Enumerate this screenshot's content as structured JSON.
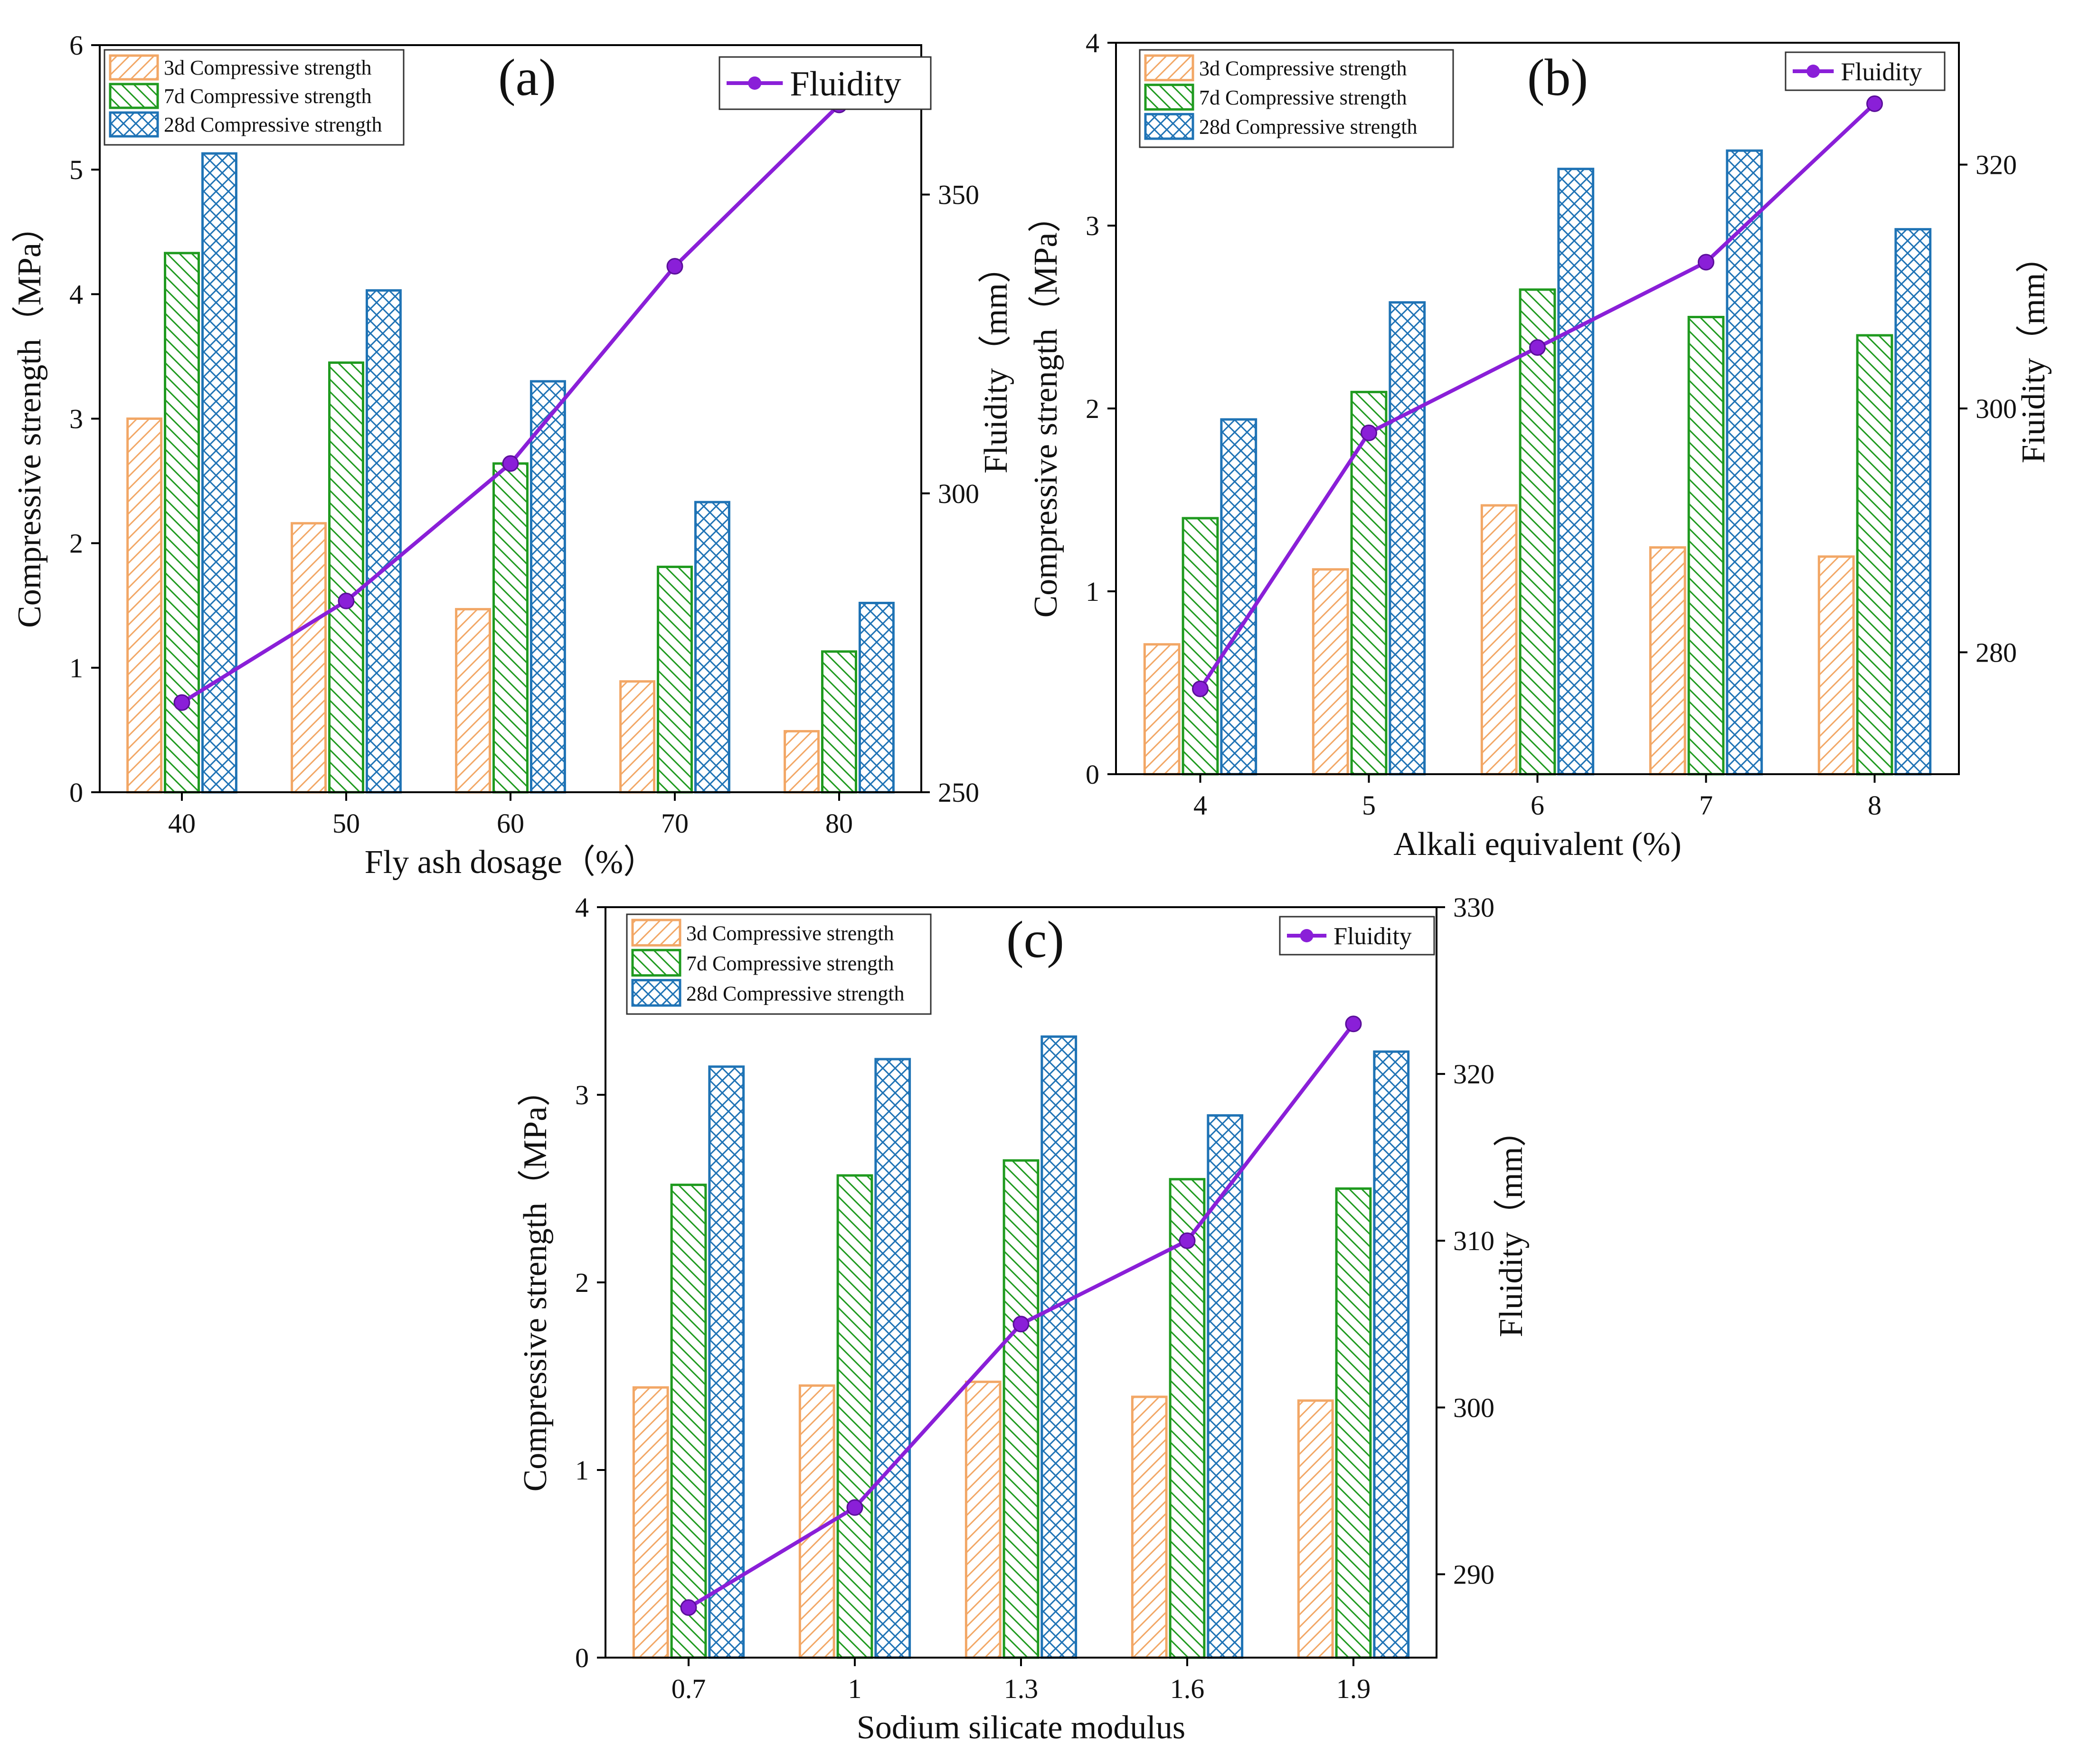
{
  "colors": {
    "d3": "#f2a766",
    "d7": "#1f9a1f",
    "d28": "#1f73b5",
    "fluidity": "#8a1fd8"
  },
  "chart_data": [
    {
      "type": "bar",
      "panel_label": "(a)",
      "xlabel": "Fly ash dosage（%）",
      "ylabel": "Compressive strength（MPa）",
      "y2label": "Fluidity（mm）",
      "categories": [
        "40",
        "50",
        "60",
        "70",
        "80"
      ],
      "ylim": [
        0,
        6
      ],
      "yticks": [
        "0",
        "1",
        "2",
        "3",
        "4",
        "5",
        "6"
      ],
      "y2lim": [
        250,
        375
      ],
      "y2ticks": [
        "250",
        "300",
        "350"
      ],
      "series": [
        {
          "name": "3d Compressive strength",
          "values": [
            3.0,
            2.16,
            1.47,
            0.89,
            0.49
          ]
        },
        {
          "name": "7d Compressive strength",
          "values": [
            4.33,
            3.45,
            2.64,
            1.81,
            1.13
          ]
        },
        {
          "name": "28d Compressive strength",
          "values": [
            5.13,
            4.03,
            3.3,
            2.33,
            1.52
          ]
        }
      ],
      "line": {
        "name": "Fluidity",
        "values": [
          265,
          282,
          305,
          338,
          365
        ]
      },
      "legend_lines": "top-right",
      "legend_bars": "top-left"
    },
    {
      "type": "bar",
      "panel_label": "(b)",
      "xlabel": "Alkali equivalent (%)",
      "ylabel": "Compressive strength（MPa）",
      "y2label": "Fiuidity（mm）",
      "categories": [
        "4",
        "5",
        "6",
        "7",
        "8"
      ],
      "ylim": [
        0,
        4
      ],
      "yticks": [
        "0",
        "1",
        "2",
        "3",
        "4"
      ],
      "y2lim": [
        270,
        330
      ],
      "y2ticks": [
        "280",
        "300",
        "320"
      ],
      "series": [
        {
          "name": "3d Compressive strength",
          "values": [
            0.71,
            1.12,
            1.47,
            1.24,
            1.19
          ]
        },
        {
          "name": "7d Compressive strength",
          "values": [
            1.4,
            2.09,
            2.65,
            2.5,
            2.4
          ]
        },
        {
          "name": "28d Compressive strength",
          "values": [
            1.94,
            2.58,
            3.31,
            3.41,
            2.98
          ]
        }
      ],
      "line": {
        "name": "Fluidity",
        "values": [
          277,
          298,
          305,
          312,
          325
        ]
      },
      "legend_lines": "top-right",
      "legend_bars": "top-left"
    },
    {
      "type": "bar",
      "panel_label": "(c)",
      "xlabel": "Sodium silicate modulus",
      "ylabel": "Compressive strength（MPa）",
      "y2label": "Fluidity（mm）",
      "categories": [
        "0.7",
        "1",
        "1.3",
        "1.6",
        "1.9"
      ],
      "ylim": [
        0,
        4
      ],
      "yticks": [
        "0",
        "1",
        "2",
        "3",
        "4"
      ],
      "y2lim": [
        285,
        330
      ],
      "y2ticks": [
        "290",
        "300",
        "310",
        "320",
        "330"
      ],
      "series": [
        {
          "name": "3d Compressive strength",
          "values": [
            1.44,
            1.45,
            1.47,
            1.39,
            1.37
          ]
        },
        {
          "name": "7d Compressive strength",
          "values": [
            2.52,
            2.57,
            2.65,
            2.55,
            2.5
          ]
        },
        {
          "name": "28d Compressive strength",
          "values": [
            3.15,
            3.19,
            3.31,
            2.89,
            3.23
          ]
        }
      ],
      "line": {
        "name": "Fluidity",
        "values": [
          288,
          294,
          305,
          310,
          323
        ]
      },
      "legend_lines": "top-right",
      "legend_bars": "top-left"
    }
  ]
}
